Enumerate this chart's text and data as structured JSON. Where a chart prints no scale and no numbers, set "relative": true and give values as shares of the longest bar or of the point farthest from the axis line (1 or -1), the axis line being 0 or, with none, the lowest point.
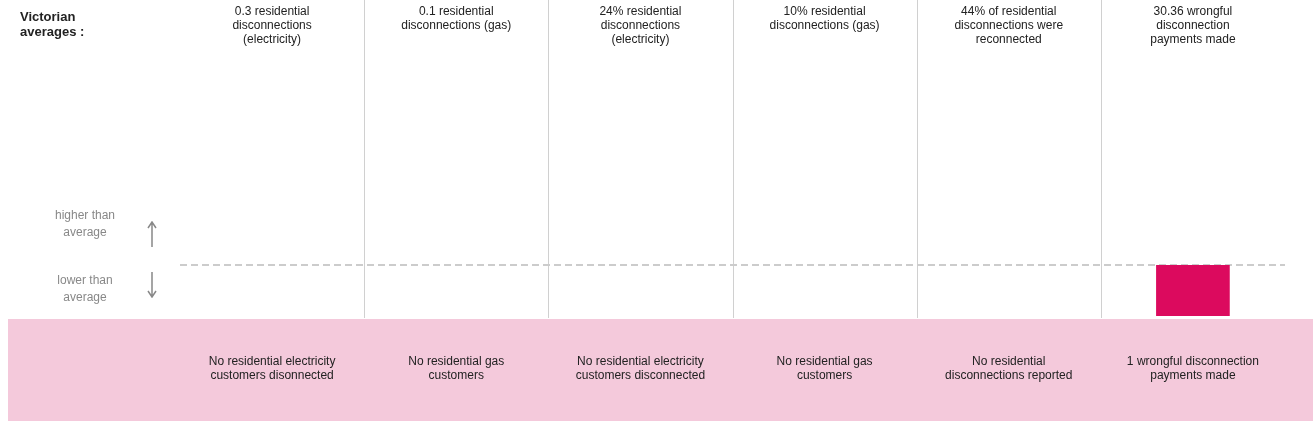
{
  "chart_data": {
    "type": "bar",
    "relative": true,
    "title": "Victorian averages :",
    "categories": [
      "0.3 residential disconnections (electricity)",
      "0.1 residential disconnections (gas)",
      "24% residential disconnections (electricity)",
      "10% residential disconnections (gas)",
      "44% of residential disconnections were reconnected",
      "30.36 wrongful disconnection payments made"
    ],
    "values": [
      null,
      null,
      null,
      null,
      null,
      -1
    ],
    "color": "#dc0a5e",
    "annotations": [
      "higher than average",
      "lower than average",
      "No residential electricity customers disonnected",
      "No residential gas customers",
      "No residential electricity customers disconnected",
      "No residential gas customers",
      "No residential disconnections reported",
      "1 wrongful disconnection payments made"
    ],
    "ref_lines": [
      {
        "axis": "y",
        "value": 0,
        "color": "#cccccc",
        "line_style": "dashed"
      }
    ],
    "grid": "x",
    "legend": false
  }
}
